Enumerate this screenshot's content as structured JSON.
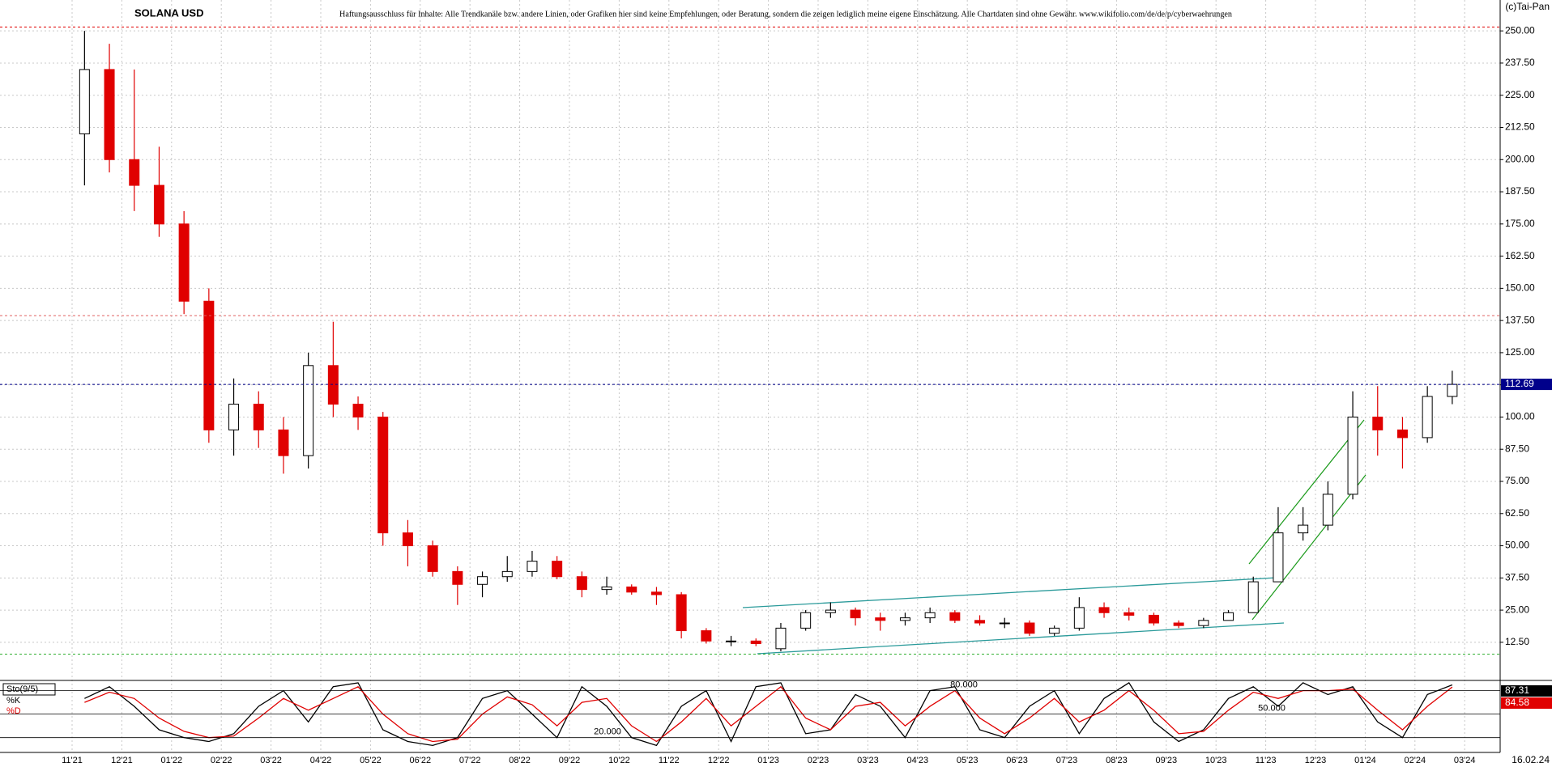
{
  "chart_data": [
    {
      "type": "candlestick",
      "title": "SOLANA USD",
      "subtitle": "Haftungsausschluss für Inhalte: Alle Trendkanäle bzw. andere Linien, oder Grafiken hier sind keine Empfehlungen, oder Beratung, sondern die zeigen lediglich meine eigene Einschätzung. Alle Chartdaten sind ohne Gewähr. www.wikifolio.com/de/de/p/cyberwaehrungen",
      "source": "(c)Tai-Pan",
      "date_label": "16.02.24",
      "categories": [
        "11'21",
        null,
        "12'21",
        null,
        "01'22",
        null,
        "02'22",
        null,
        "03'22",
        null,
        "04'22",
        null,
        "05'22",
        null,
        "06'22",
        null,
        "07'22",
        null,
        "08'22",
        null,
        "09'22",
        null,
        "10'22",
        null,
        "11'22",
        null,
        "12'22",
        null,
        "01'23",
        null,
        "02'23",
        null,
        "03'23",
        null,
        "04'23",
        null,
        "05'23",
        null,
        "06'23",
        null,
        "07'23",
        null,
        "08'23",
        null,
        "09'23",
        null,
        "10'23",
        null,
        "11'23",
        null,
        "12'23",
        null,
        "01'24",
        null,
        "02'24",
        null,
        "03'24",
        null
      ],
      "open": [
        210,
        235,
        200,
        190,
        175,
        145,
        95,
        105,
        95,
        85,
        120,
        105,
        100,
        55,
        50,
        40,
        35,
        38,
        40,
        44,
        38,
        33,
        34,
        32,
        31,
        17,
        13,
        13,
        10,
        18,
        24,
        25,
        22,
        21,
        22,
        24,
        21,
        20,
        20,
        16,
        18,
        26,
        24,
        23,
        20,
        19,
        21,
        24,
        36,
        55,
        58,
        70,
        100,
        95,
        92,
        108,
        null,
        null
      ],
      "high": [
        250,
        245,
        235,
        205,
        180,
        150,
        115,
        110,
        100,
        125,
        137,
        108,
        102,
        60,
        52,
        42,
        40,
        46,
        48,
        46,
        40,
        38,
        35,
        34,
        32,
        18,
        15,
        14,
        20,
        25,
        28,
        26,
        24,
        24,
        26,
        25,
        23,
        22,
        21,
        19,
        30,
        28,
        26,
        24,
        21,
        22,
        25,
        38,
        65,
        65,
        75,
        110,
        112,
        100,
        112,
        118,
        null,
        null
      ],
      "low": [
        190,
        195,
        180,
        170,
        140,
        90,
        85,
        88,
        78,
        80,
        100,
        95,
        50,
        42,
        38,
        27,
        30,
        36,
        38,
        37,
        30,
        31,
        31,
        27,
        14,
        12,
        11,
        11,
        9,
        17,
        22,
        19,
        17,
        19,
        20,
        20,
        19,
        18,
        15,
        15,
        17,
        22,
        21,
        19,
        18,
        18,
        21,
        24,
        36,
        52,
        56,
        68,
        85,
        80,
        90,
        105,
        null,
        null
      ],
      "close": [
        235,
        200,
        190,
        175,
        145,
        95,
        105,
        95,
        85,
        120,
        105,
        100,
        55,
        50,
        40,
        35,
        38,
        40,
        44,
        38,
        33,
        34,
        32,
        31,
        17,
        13,
        13,
        12,
        18,
        24,
        25,
        22,
        21,
        22,
        24,
        21,
        20,
        20,
        16,
        18,
        26,
        24,
        23,
        20,
        19,
        21,
        24,
        36,
        55,
        58,
        70,
        100,
        95,
        92,
        108,
        112.69,
        null,
        null
      ],
      "up_color": "#000000",
      "down_color": "#e00000",
      "ylim": [
        -2,
        262
      ],
      "yticks": [
        {
          "value": 12.5,
          "label": "12.50"
        },
        {
          "value": 25,
          "label": "25.00"
        },
        {
          "value": 37.5,
          "label": "37.50"
        },
        {
          "value": 50,
          "label": "50.00"
        },
        {
          "value": 62.5,
          "label": "62.50"
        },
        {
          "value": 75,
          "label": "75.00"
        },
        {
          "value": 87.5,
          "label": "87.50"
        },
        {
          "value": 100,
          "label": "100.00"
        },
        {
          "value": 112.5,
          "label": "112.50"
        },
        {
          "value": 125,
          "label": "125.00"
        },
        {
          "value": 137.5,
          "label": "137.50"
        },
        {
          "value": 150,
          "label": "150.00"
        },
        {
          "value": 162.5,
          "label": "162.50"
        },
        {
          "value": 175,
          "label": "175.00"
        },
        {
          "value": 187.5,
          "label": "187.50"
        },
        {
          "value": 200,
          "label": "200.00"
        },
        {
          "value": 212.5,
          "label": "212.50"
        },
        {
          "value": 225,
          "label": "225.00"
        },
        {
          "value": 237.5,
          "label": "237.50"
        },
        {
          "value": 250,
          "label": "250.00"
        }
      ],
      "grid": true,
      "reference_lines": [
        {
          "value": 251.5,
          "color": "#e00000"
        },
        {
          "value": 139.4,
          "color": "#e06060"
        },
        {
          "value": 112.69,
          "color": "#00008b"
        },
        {
          "value": 7.9,
          "color": "#30b030"
        }
      ]
    },
    {
      "type": "line",
      "title": "Sto(9/5)",
      "series": [
        {
          "name": "%K",
          "color": "#000000",
          "values": [
            70,
            85,
            60,
            30,
            20,
            15,
            25,
            60,
            80,
            40,
            85,
            90,
            30,
            15,
            10,
            20,
            70,
            80,
            50,
            20,
            85,
            60,
            20,
            10,
            60,
            80,
            15,
            85,
            90,
            25,
            30,
            75,
            60,
            20,
            80,
            85,
            30,
            20,
            60,
            80,
            25,
            70,
            90,
            40,
            15,
            30,
            70,
            85,
            60,
            90,
            75,
            85,
            40,
            20,
            75,
            87.31,
            null,
            null
          ]
        },
        {
          "name": "%D",
          "color": "#e00000",
          "values": [
            65,
            78,
            70,
            45,
            28,
            20,
            22,
            45,
            70,
            55,
            70,
            85,
            50,
            25,
            15,
            18,
            50,
            72,
            62,
            35,
            65,
            70,
            35,
            15,
            40,
            70,
            35,
            60,
            85,
            45,
            30,
            60,
            65,
            35,
            60,
            80,
            45,
            25,
            45,
            70,
            40,
            55,
            80,
            55,
            25,
            28,
            55,
            78,
            70,
            80,
            80,
            82,
            55,
            30,
            60,
            84.58,
            null,
            null
          ]
        }
      ],
      "ylim": [
        -1,
        92
      ],
      "yticks": [
        {
          "value": 20,
          "label": "20.000"
        },
        {
          "value": 50,
          "label": "50.000"
        },
        {
          "value": 80,
          "label": "80.000"
        }
      ]
    }
  ]
}
